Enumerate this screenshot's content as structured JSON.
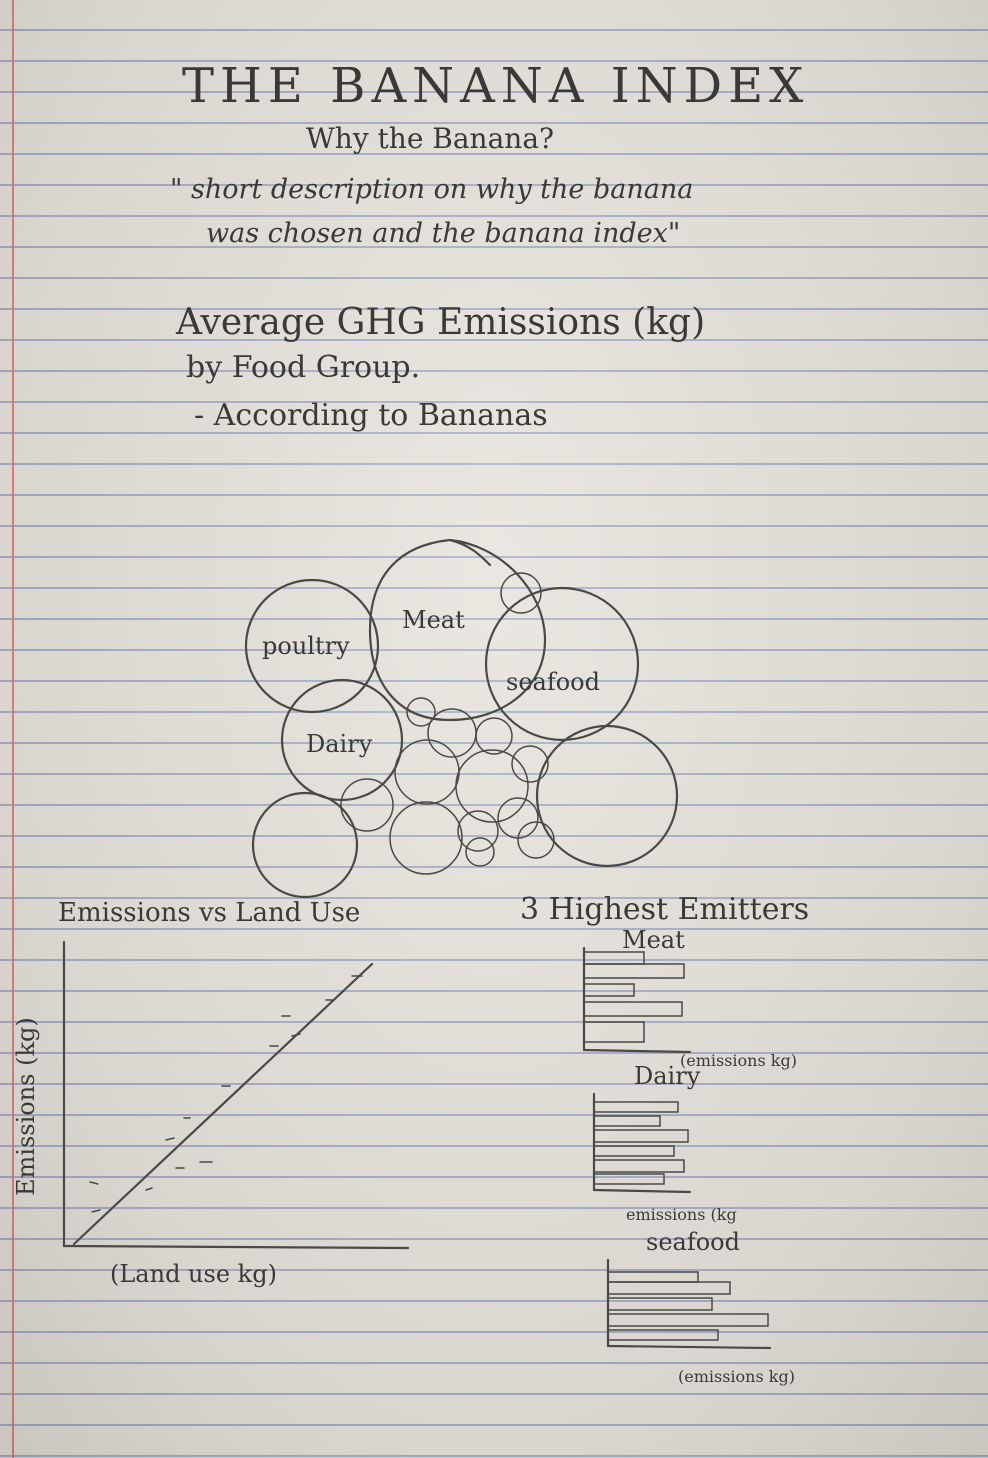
{
  "header": {
    "title": "THE BANANA INDEX",
    "subtitle": "Why the Banana?",
    "description_line1": "\" short description on why the banana",
    "description_line2": "was chosen and the banana index\""
  },
  "bubble_section": {
    "title_line1": "Average GHG Emissions (kg)",
    "title_line2": "by Food Group.",
    "title_line3": "- According to Bananas",
    "labels": {
      "poultry": "poultry",
      "meat": "Meat",
      "seafood": "seafood",
      "dairy": "Dairy"
    }
  },
  "scatter_section": {
    "title": "Emissions vs Land Use",
    "xlabel": "(Land use kg)",
    "ylabel": "Emissions (kg)"
  },
  "bars_section": {
    "title": "3 Highest Emitters",
    "meat_title": "Meat",
    "meat_xlabel": "(emissions kg)",
    "dairy_title": "Dairy",
    "dairy_xlabel": "emissions (kg",
    "seafood_title": "seafood",
    "seafood_xlabel": "(emissions kg)"
  },
  "colors": {
    "paper": "#e6e1da",
    "rule_lines": "#8f9dc4",
    "margin_line": "#e1716f",
    "pencil": "#4a4946"
  }
}
